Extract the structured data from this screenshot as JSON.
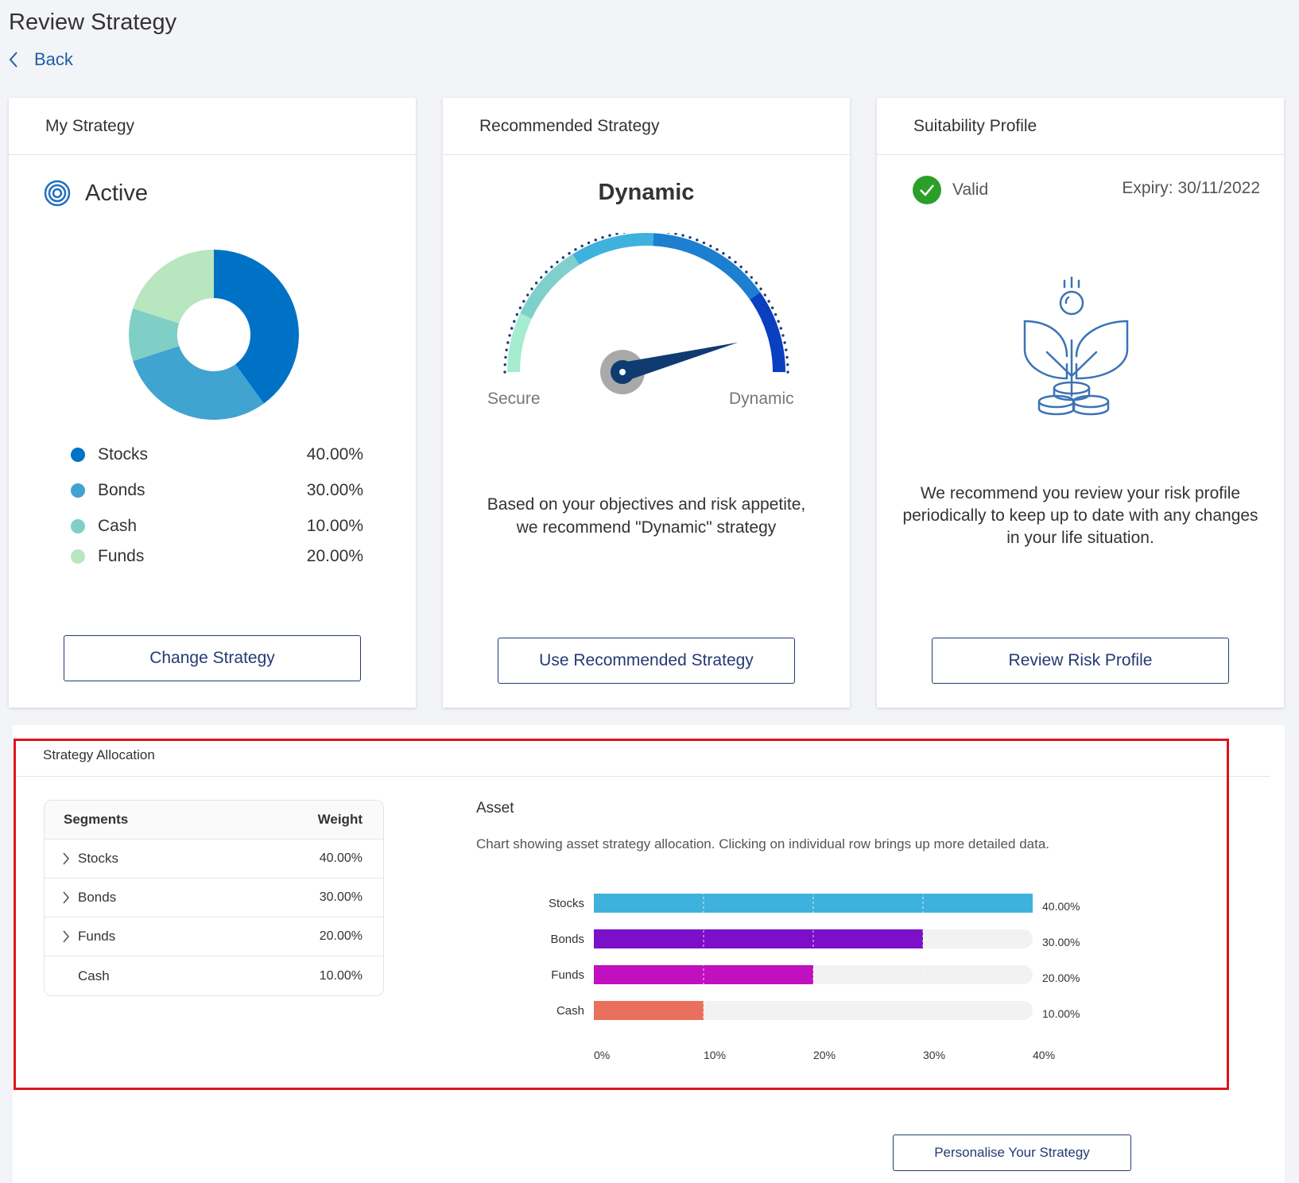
{
  "page": {
    "title": "Review Strategy",
    "back_label": "Back"
  },
  "my_strategy": {
    "header": "My Strategy",
    "status": "Active",
    "allocation": [
      {
        "label": "Stocks",
        "value": "40.00%",
        "color": "#0072c6"
      },
      {
        "label": "Bonds",
        "value": "30.00%",
        "color": "#40a3d0"
      },
      {
        "label": "Cash",
        "value": "10.00%",
        "color": "#80cfc6"
      },
      {
        "label": "Funds",
        "value": "20.00%",
        "color": "#b8e6bf"
      }
    ],
    "button_label": "Change Strategy"
  },
  "recommended": {
    "header": "Recommended Strategy",
    "name": "Dynamic",
    "gauge_min_label": "Secure",
    "gauge_max_label": "Dynamic",
    "gauge_level": 0.92,
    "description_line1": "Based on your objectives and risk appetite,",
    "description_line2": "we recommend \"Dynamic\" strategy",
    "button_label": "Use Recommended Strategy"
  },
  "suitability": {
    "header": "Suitability Profile",
    "status": "Valid",
    "expiry_label": "Expiry:",
    "expiry_date": "30/11/2022",
    "description_line1": "We recommend you review your risk profile",
    "description_line2": "periodically to keep up to date with any changes",
    "description_line3": "in your life situation.",
    "button_label": "Review Risk Profile"
  },
  "strategy_allocation": {
    "title": "Strategy Allocation",
    "table": {
      "col_segments": "Segments",
      "col_weight": "Weight",
      "rows": [
        {
          "name": "Stocks",
          "weight": "40.00%",
          "expandable": true
        },
        {
          "name": "Bonds",
          "weight": "30.00%",
          "expandable": true
        },
        {
          "name": "Funds",
          "weight": "20.00%",
          "expandable": true
        },
        {
          "name": "Cash",
          "weight": "10.00%",
          "expandable": false
        }
      ]
    },
    "asset_title": "Asset",
    "asset_description": "Chart showing asset strategy allocation. Clicking on individual row brings up more detailed data.",
    "personalise_label": "Personalise Your Strategy"
  },
  "chart_data": [
    {
      "type": "pie",
      "categories": [
        "Stocks",
        "Bonds",
        "Cash",
        "Funds"
      ],
      "values": [
        40,
        30,
        10,
        20
      ],
      "colors": [
        "#0072c6",
        "#40a3d0",
        "#80cfc6",
        "#b8e6bf"
      ]
    },
    {
      "type": "bar",
      "orientation": "horizontal",
      "categories": [
        "Stocks",
        "Bonds",
        "Funds",
        "Cash"
      ],
      "values": [
        40,
        30,
        20,
        10
      ],
      "value_labels": [
        "40.00%",
        "30.00%",
        "20.00%",
        "10.00%"
      ],
      "colors": [
        "#3fb1dd",
        "#7b10c8",
        "#c010c0",
        "#e8705c"
      ],
      "xlim": [
        0,
        40
      ],
      "xticks": [
        "0%",
        "10%",
        "20%",
        "30%",
        "40%"
      ],
      "grid": true
    }
  ]
}
